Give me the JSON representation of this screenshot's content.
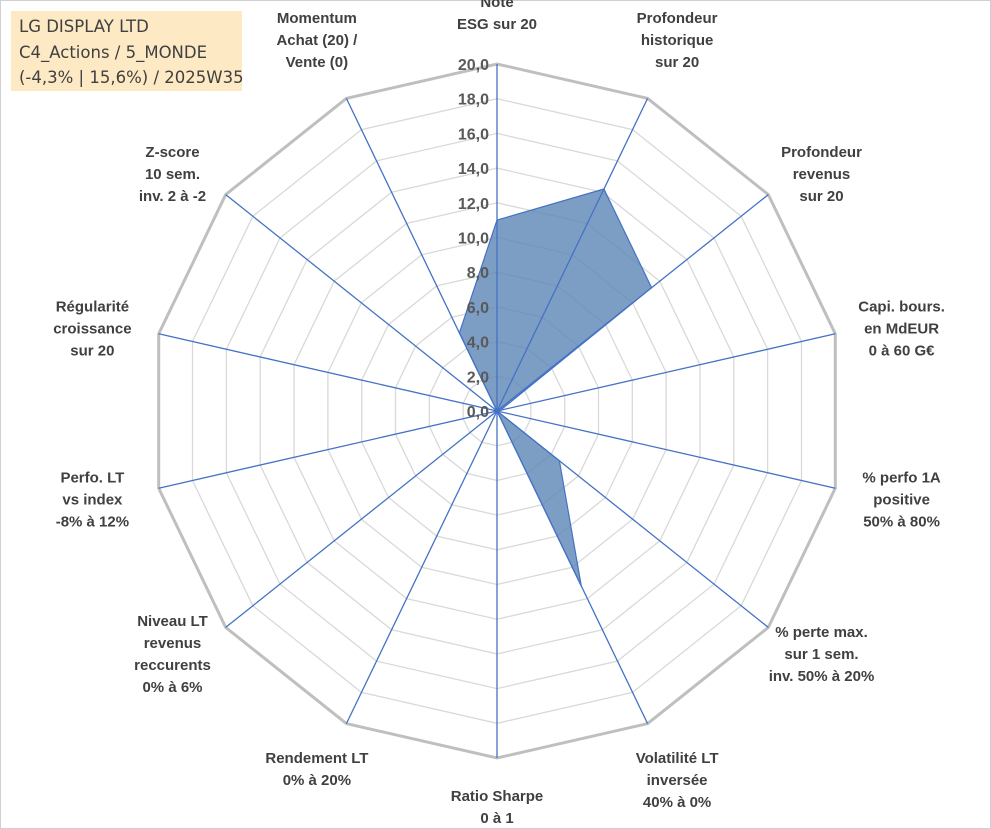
{
  "info_box": {
    "line1": "LG DISPLAY LTD",
    "line2": "C4_Actions / 5_MONDE",
    "line3": "(-4,3% | 15,6%) / 2025W35"
  },
  "chart_data": {
    "type": "radar",
    "rlim": [
      0,
      20
    ],
    "tick_step": 2,
    "tick_labels": [
      "0,0",
      "2,0",
      "4,0",
      "6,0",
      "8,0",
      "10,0",
      "12,0",
      "14,0",
      "16,0",
      "18,0",
      "20,0"
    ],
    "grid": true,
    "axes": [
      {
        "label": [
          "Note",
          "ESG sur 20"
        ],
        "value": 11.0
      },
      {
        "label": [
          "Profondeur",
          "historique",
          "sur 20"
        ],
        "value": 14.2
      },
      {
        "label": [
          "Profondeur",
          "revenus",
          "sur 20"
        ],
        "value": 11.4
      },
      {
        "label": [
          "Capi. bours.",
          "en MdEUR",
          "0 à 60 G€"
        ],
        "value": 0.2
      },
      {
        "label": [
          "% perfo 1A",
          "positive",
          "50% à 80%"
        ],
        "value": 0.0
      },
      {
        "label": [
          "% perte max.",
          "sur 1 sem.",
          "inv. 50% à 20%"
        ],
        "value": 4.6
      },
      {
        "label": [
          "Volatilité LT",
          "inversée",
          "40% à 0%"
        ],
        "value": 11.2
      },
      {
        "label": [
          "Ratio Sharpe",
          "0 à 1"
        ],
        "value": 0.0
      },
      {
        "label": [
          "Rendement LT",
          "0% à 20%"
        ],
        "value": 0.0
      },
      {
        "label": [
          "Niveau LT",
          "revenus",
          "reccurents",
          "0% à 6%"
        ],
        "value": 0.0
      },
      {
        "label": [
          "Perfo. LT",
          "vs index",
          "-8% à 12%"
        ],
        "value": 0.0
      },
      {
        "label": [
          "Régularité",
          "croissance",
          "sur 20"
        ],
        "value": 0.0
      },
      {
        "label": [
          "Z-score",
          "10 sem.",
          "inv. 2 à -2"
        ],
        "value": 0.0
      },
      {
        "label": [
          "Momentum",
          "Achat (20) /",
          "Vente (0)"
        ],
        "value": 5.0
      }
    ],
    "colors": {
      "fill": "#5b86b6",
      "fill_opacity": 0.8,
      "series_line": "#4472c4",
      "spoke": "#4472c4",
      "outer_grid": "#bfbfbf",
      "inner_grid": "#d9d9d9"
    }
  }
}
